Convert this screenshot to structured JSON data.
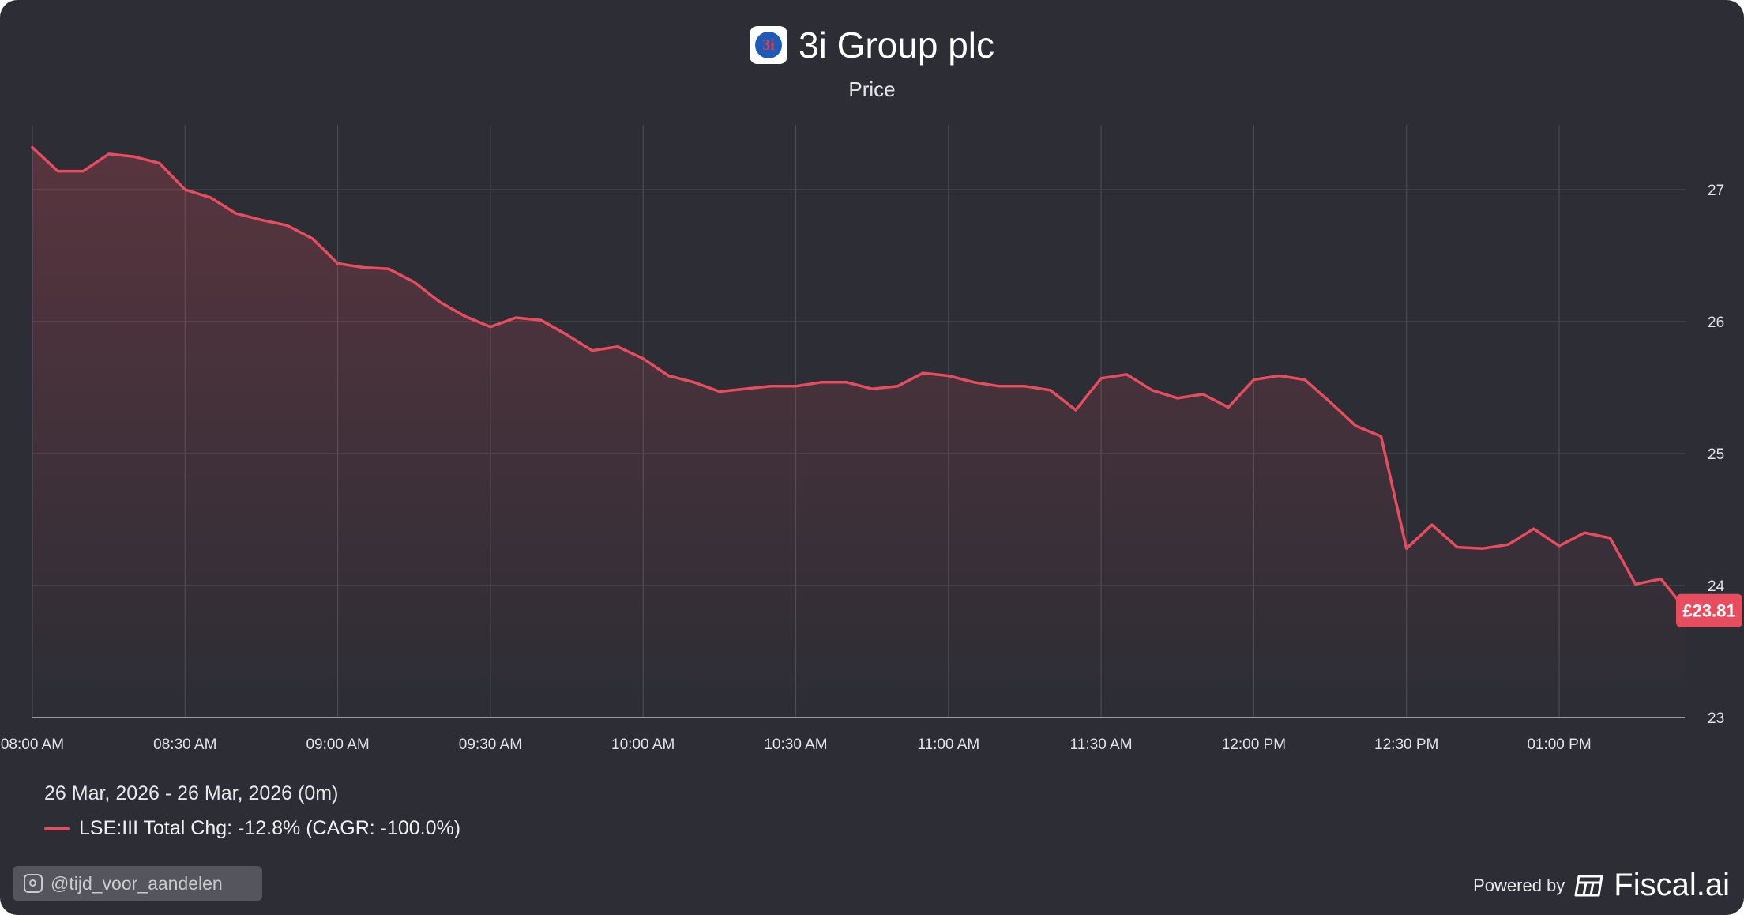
{
  "header": {
    "title": "3i Group plc",
    "subtitle": "Price",
    "logo_text": "3i"
  },
  "footer": {
    "date_range": "26 Mar, 2026 - 26 Mar, 2026 (0m)",
    "legend_label": "LSE:III Total Chg: -12.8% (CAGR: -100.0%)",
    "instagram_handle": "@tijd_voor_aandelen",
    "powered_by": "Powered by",
    "brand": "Fiscal.ai"
  },
  "colors": {
    "background": "#2c2d35",
    "line": "#e64d5e",
    "grid": "#4a4b53",
    "price_badge": "#e64d5e"
  },
  "icons": [
    "company-logo-icon",
    "instagram-icon",
    "fiscal-ai-logo-icon"
  ],
  "chart_data": {
    "type": "area",
    "series_name": "LSE:III",
    "x_tick_labels": [
      "08:00 AM",
      "08:30 AM",
      "09:00 AM",
      "09:30 AM",
      "10:00 AM",
      "10:30 AM",
      "11:00 AM",
      "11:30 AM",
      "12:00 PM",
      "12:30 PM",
      "01:00 PM"
    ],
    "y_ticks": [
      23,
      24,
      25,
      26,
      27
    ],
    "ylim": [
      23,
      27.5
    ],
    "interval_minutes": 5,
    "start_time": "08:00 AM",
    "values": [
      27.32,
      27.14,
      27.14,
      27.27,
      27.25,
      27.2,
      27.0,
      26.94,
      26.82,
      26.77,
      26.73,
      26.63,
      26.44,
      26.41,
      26.4,
      26.3,
      26.15,
      26.04,
      25.96,
      26.03,
      26.01,
      25.9,
      25.78,
      25.81,
      25.72,
      25.59,
      25.54,
      25.47,
      25.49,
      25.51,
      25.51,
      25.54,
      25.54,
      25.49,
      25.51,
      25.61,
      25.59,
      25.54,
      25.51,
      25.51,
      25.48,
      25.33,
      25.57,
      25.6,
      25.48,
      25.42,
      25.45,
      25.35,
      25.56,
      25.59,
      25.56,
      25.39,
      25.21,
      25.13,
      24.28,
      24.46,
      24.29,
      24.28,
      24.31,
      24.43,
      24.3,
      24.4,
      24.36,
      24.01,
      24.05,
      23.81
    ],
    "last_price_label": "£23.81",
    "grid": true,
    "legend_position": "bottom-left"
  }
}
